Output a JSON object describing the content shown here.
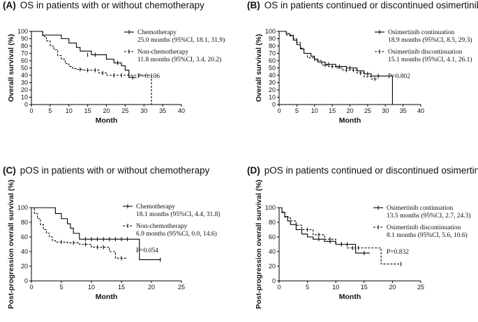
{
  "chart_data": [
    {
      "type": "line",
      "panel_label": "(A)",
      "title": "OS in patients with or without chemotherapy",
      "xlabel": "Month",
      "ylabel": "Overall survival (%)",
      "xlim": [
        0,
        40
      ],
      "ylim": [
        0,
        100
      ],
      "xticks": [
        0,
        5,
        10,
        15,
        20,
        25,
        30,
        35,
        40
      ],
      "yticks": [
        0,
        10,
        20,
        30,
        40,
        50,
        60,
        70,
        80,
        90,
        100
      ],
      "series": [
        {
          "name": "Chemotherapy",
          "detail": "25.0 months (95%CI, 18.1, 31.9)",
          "style": "solid",
          "x": [
            0,
            3,
            8,
            10,
            12,
            13,
            16,
            20,
            22,
            24,
            25,
            26,
            28
          ],
          "y": [
            100,
            95,
            90,
            84,
            78,
            73,
            68,
            62,
            57,
            53,
            47,
            37,
            37
          ],
          "censor_x": [
            15,
            17,
            23,
            27
          ],
          "censor_y": [
            68,
            68,
            57,
            37
          ]
        },
        {
          "name": "Non-chemotherapy",
          "detail": "11.8 months (95%CI, 3.4, 20.2)",
          "style": "dashed",
          "x": [
            0,
            3,
            4,
            5,
            6,
            7,
            8,
            9,
            10,
            11,
            12,
            14,
            18,
            20,
            32,
            32
          ],
          "y": [
            100,
            93,
            87,
            80,
            75,
            67,
            62,
            56,
            52,
            49,
            48,
            47,
            43,
            40,
            40,
            0
          ],
          "censor_x": [
            13,
            15,
            17,
            19,
            22,
            24,
            26
          ],
          "censor_y": [
            48,
            47,
            47,
            43,
            40,
            40,
            40
          ]
        }
      ],
      "pvalue": "P=0.106"
    },
    {
      "type": "line",
      "panel_label": "(B)",
      "title": "OS in patients continued or discontinued osimertinib",
      "xlabel": "Month",
      "ylabel": "Overall survival (%)",
      "xlim": [
        0,
        40
      ],
      "ylim": [
        0,
        100
      ],
      "xticks": [
        0,
        5,
        10,
        15,
        20,
        25,
        30,
        35,
        40
      ],
      "yticks": [
        0,
        10,
        20,
        30,
        40,
        50,
        60,
        70,
        80,
        90,
        100
      ],
      "series": [
        {
          "name": "Osimertinib continuation",
          "detail": "18.9 months (95%CI, 8.5, 29.3)",
          "style": "solid",
          "x": [
            0,
            2,
            3,
            4,
            5,
            6,
            7,
            9,
            10,
            11,
            13,
            16,
            19,
            22,
            24,
            26,
            32,
            32
          ],
          "y": [
            100,
            97,
            94,
            88,
            82,
            76,
            70,
            66,
            62,
            58,
            55,
            52,
            50,
            46,
            42,
            39,
            39,
            0
          ],
          "censor_x": [
            14,
            17,
            20,
            25,
            28
          ],
          "censor_y": [
            55,
            52,
            50,
            42,
            39
          ]
        },
        {
          "name": "Osimertinib discontinuation",
          "detail": "15.1 months (95%CI, 4.1, 26.1)",
          "style": "dashed",
          "x": [
            0,
            2,
            4,
            5,
            6,
            7,
            8,
            10,
            12,
            14,
            16,
            18,
            22,
            24,
            26,
            28
          ],
          "y": [
            100,
            95,
            90,
            85,
            77,
            70,
            64,
            60,
            54,
            52,
            50,
            47,
            43,
            38,
            35,
            35
          ],
          "censor_x": [
            13,
            15,
            19,
            21,
            23,
            27
          ],
          "censor_y": [
            54,
            52,
            47,
            47,
            43,
            35
          ]
        }
      ],
      "pvalue": "P=0.802"
    },
    {
      "type": "line",
      "panel_label": "(C)",
      "title": "pOS in patients with or without chemotherapy",
      "xlabel": "Month",
      "ylabel": "Post-progression overall survival (%)",
      "xlim": [
        0,
        25
      ],
      "ylim": [
        0,
        100
      ],
      "xticks": [
        0,
        5,
        10,
        15,
        20,
        25
      ],
      "yticks": [
        0,
        20,
        40,
        60,
        80,
        100
      ],
      "series": [
        {
          "name": "Chemotherapy",
          "detail": "18.1 months (95%CI, 4.4, 31.8)",
          "style": "solid",
          "x": [
            0,
            4,
            5,
            6,
            6.5,
            7,
            8,
            18,
            18,
            21.5
          ],
          "y": [
            100,
            92,
            85,
            78,
            72,
            65,
            57,
            57,
            29,
            29
          ],
          "censor_x": [
            9,
            10,
            11,
            12,
            13,
            14,
            15,
            16,
            21.5
          ],
          "censor_y": [
            57,
            57,
            57,
            57,
            57,
            57,
            57,
            57,
            29
          ]
        },
        {
          "name": "Non-chemotherapy",
          "detail": "6.9 months (95%CI, 0.0, 14.6)",
          "style": "dashed",
          "x": [
            0,
            0.5,
            1,
            1.5,
            2,
            2.5,
            3,
            3.5,
            4,
            6,
            8,
            10,
            13,
            14,
            16
          ],
          "y": [
            100,
            92,
            85,
            77,
            70,
            65,
            60,
            55,
            53,
            52,
            50,
            46,
            40,
            31,
            31
          ],
          "censor_x": [
            5,
            7,
            9,
            11,
            12,
            15
          ],
          "censor_y": [
            53,
            52,
            50,
            46,
            46,
            31
          ]
        }
      ],
      "pvalue": "P=0.054"
    },
    {
      "type": "line",
      "panel_label": "(D)",
      "title": "pOS in patients continued or discontinued osimertinib",
      "xlabel": "Month",
      "ylabel": "Post-progression overall survival (%)",
      "xlim": [
        0,
        25
      ],
      "ylim": [
        0,
        100
      ],
      "xticks": [
        0,
        5,
        10,
        15,
        20,
        25
      ],
      "yticks": [
        0,
        20,
        40,
        60,
        80,
        100
      ],
      "series": [
        {
          "name": "Osimertinib continuation",
          "detail": "13.5 months (95%CI, 2.7, 24.3)",
          "style": "solid",
          "x": [
            0,
            0.5,
            1,
            1.5,
            2,
            3,
            4,
            5,
            6,
            8,
            10,
            13.5,
            16
          ],
          "y": [
            100,
            94,
            88,
            82,
            77,
            70,
            64,
            60,
            57,
            54,
            50,
            38,
            38
          ],
          "censor_x": [
            7,
            9,
            11,
            12,
            15
          ],
          "censor_y": [
            57,
            54,
            50,
            50,
            38
          ]
        },
        {
          "name": "Osimertinib discontinuation",
          "detail": "8.1 months (95%CI, 5.6, 10.6)",
          "style": "dashed",
          "x": [
            0,
            0.5,
            1,
            2,
            3,
            4,
            6,
            8,
            10,
            12,
            15,
            18,
            18,
            21.5
          ],
          "y": [
            100,
            93,
            87,
            82,
            76,
            70,
            63,
            57,
            50,
            45,
            45,
            45,
            23,
            23
          ],
          "censor_x": [
            5,
            7,
            9,
            11,
            13,
            14,
            21.5
          ],
          "censor_y": [
            70,
            63,
            57,
            50,
            45,
            45,
            23
          ]
        }
      ],
      "pvalue": "P=0.832"
    }
  ]
}
